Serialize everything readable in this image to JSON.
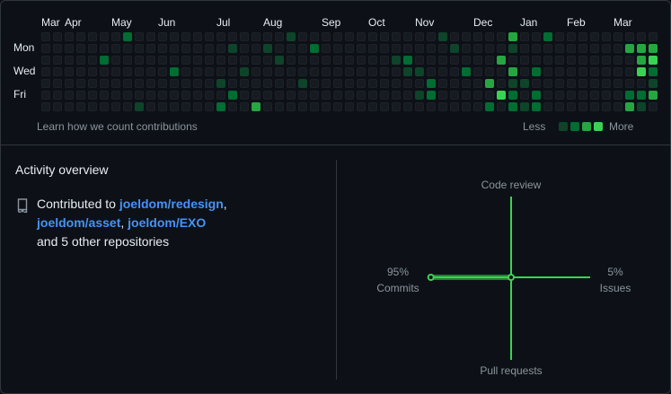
{
  "graph": {
    "months": [
      {
        "label": "Mar",
        "col": 0
      },
      {
        "label": "Apr",
        "col": 2
      },
      {
        "label": "May",
        "col": 6
      },
      {
        "label": "Jun",
        "col": 10
      },
      {
        "label": "Jul",
        "col": 15
      },
      {
        "label": "Aug",
        "col": 19
      },
      {
        "label": "Sep",
        "col": 24
      },
      {
        "label": "Oct",
        "col": 28
      },
      {
        "label": "Nov",
        "col": 32
      },
      {
        "label": "Dec",
        "col": 37
      },
      {
        "label": "Jan",
        "col": 41
      },
      {
        "label": "Feb",
        "col": 45
      },
      {
        "label": "Mar",
        "col": 49
      }
    ],
    "day_labels": {
      "mon": "Mon",
      "wed": "Wed",
      "fri": "Fri"
    },
    "level_colors": [
      "#161b22",
      "#0e4429",
      "#006d32",
      "#26a641",
      "#39d353"
    ],
    "active_cells": [
      [
        7,
        0,
        2
      ],
      [
        8,
        6,
        1
      ],
      [
        11,
        3,
        2
      ],
      [
        5,
        2,
        2
      ],
      [
        16,
        1,
        1
      ],
      [
        16,
        5,
        2
      ],
      [
        16,
        7,
        2
      ],
      [
        15,
        4,
        1
      ],
      [
        15,
        6,
        2
      ],
      [
        17,
        3,
        1
      ],
      [
        18,
        6,
        3
      ],
      [
        18,
        7,
        2
      ],
      [
        19,
        1,
        1
      ],
      [
        20,
        2,
        1
      ],
      [
        21,
        0,
        1
      ],
      [
        22,
        4,
        1
      ],
      [
        23,
        1,
        2
      ],
      [
        30,
        2,
        1
      ],
      [
        31,
        2,
        2
      ],
      [
        31,
        3,
        1
      ],
      [
        32,
        3,
        1
      ],
      [
        32,
        5,
        1
      ],
      [
        33,
        4,
        2
      ],
      [
        33,
        5,
        2
      ],
      [
        34,
        0,
        1
      ],
      [
        35,
        1,
        1
      ],
      [
        36,
        3,
        2
      ],
      [
        38,
        4,
        3
      ],
      [
        38,
        6,
        2
      ],
      [
        39,
        2,
        3
      ],
      [
        39,
        5,
        4
      ],
      [
        40,
        0,
        3
      ],
      [
        40,
        1,
        1
      ],
      [
        40,
        3,
        3
      ],
      [
        40,
        4,
        1
      ],
      [
        40,
        5,
        2
      ],
      [
        40,
        6,
        2
      ],
      [
        40,
        7,
        2
      ],
      [
        41,
        4,
        1
      ],
      [
        41,
        6,
        1
      ],
      [
        42,
        3,
        2
      ],
      [
        42,
        5,
        2
      ],
      [
        42,
        6,
        2
      ],
      [
        42,
        7,
        2
      ],
      [
        43,
        0,
        2
      ],
      [
        50,
        1,
        3
      ],
      [
        50,
        5,
        2
      ],
      [
        50,
        6,
        3
      ],
      [
        51,
        1,
        3
      ],
      [
        51,
        2,
        3
      ],
      [
        51,
        3,
        4
      ],
      [
        51,
        5,
        2
      ],
      [
        51,
        6,
        1
      ],
      [
        52,
        1,
        3
      ],
      [
        52,
        2,
        4
      ],
      [
        52,
        3,
        2
      ],
      [
        52,
        4,
        1
      ],
      [
        52,
        5,
        3
      ],
      [
        52,
        7,
        3
      ]
    ],
    "learn_link": "Learn how we count contributions",
    "legend_less": "Less",
    "legend_more": "More"
  },
  "overview": {
    "title": "Activity overview",
    "contributed_prefix": "Contributed to ",
    "repos": [
      "joeldom/redesign",
      "joeldom/asset",
      "joeldom/EXO"
    ],
    "separator": ", ",
    "other_text": "and 5 other repositories",
    "icon": "repo-icon"
  },
  "radar": {
    "labels": {
      "code_review": "Code review",
      "issues": "Issues",
      "pull_requests": "Pull requests",
      "commits": "Commits"
    },
    "commits_pct": "95%",
    "issues_pct": "5%",
    "values": {
      "commits": 95,
      "issues": 5,
      "code_review": 0,
      "pull_requests": 0
    },
    "line_color": "#39d353",
    "fill_color": "#26a641"
  }
}
